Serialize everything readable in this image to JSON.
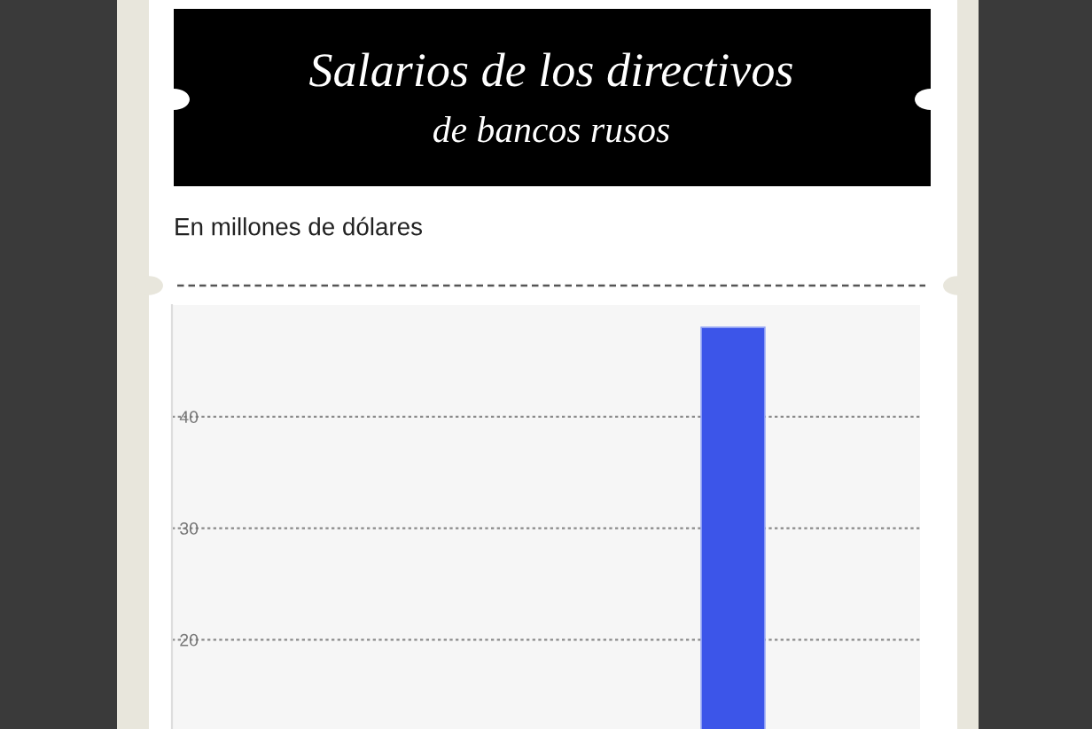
{
  "chart_data": {
    "type": "bar",
    "title": "Salarios de los directivos",
    "subtitle": "de bancos rusos",
    "ylabel": "En millones de dólares",
    "categories": [
      null,
      null,
      null,
      null,
      null,
      null
    ],
    "values": [
      null,
      null,
      null,
      null,
      48,
      null
    ],
    "color": "#3c55e9",
    "ylim": [
      12,
      50
    ],
    "yticks": [
      20,
      30,
      40
    ],
    "grid": "y"
  }
}
